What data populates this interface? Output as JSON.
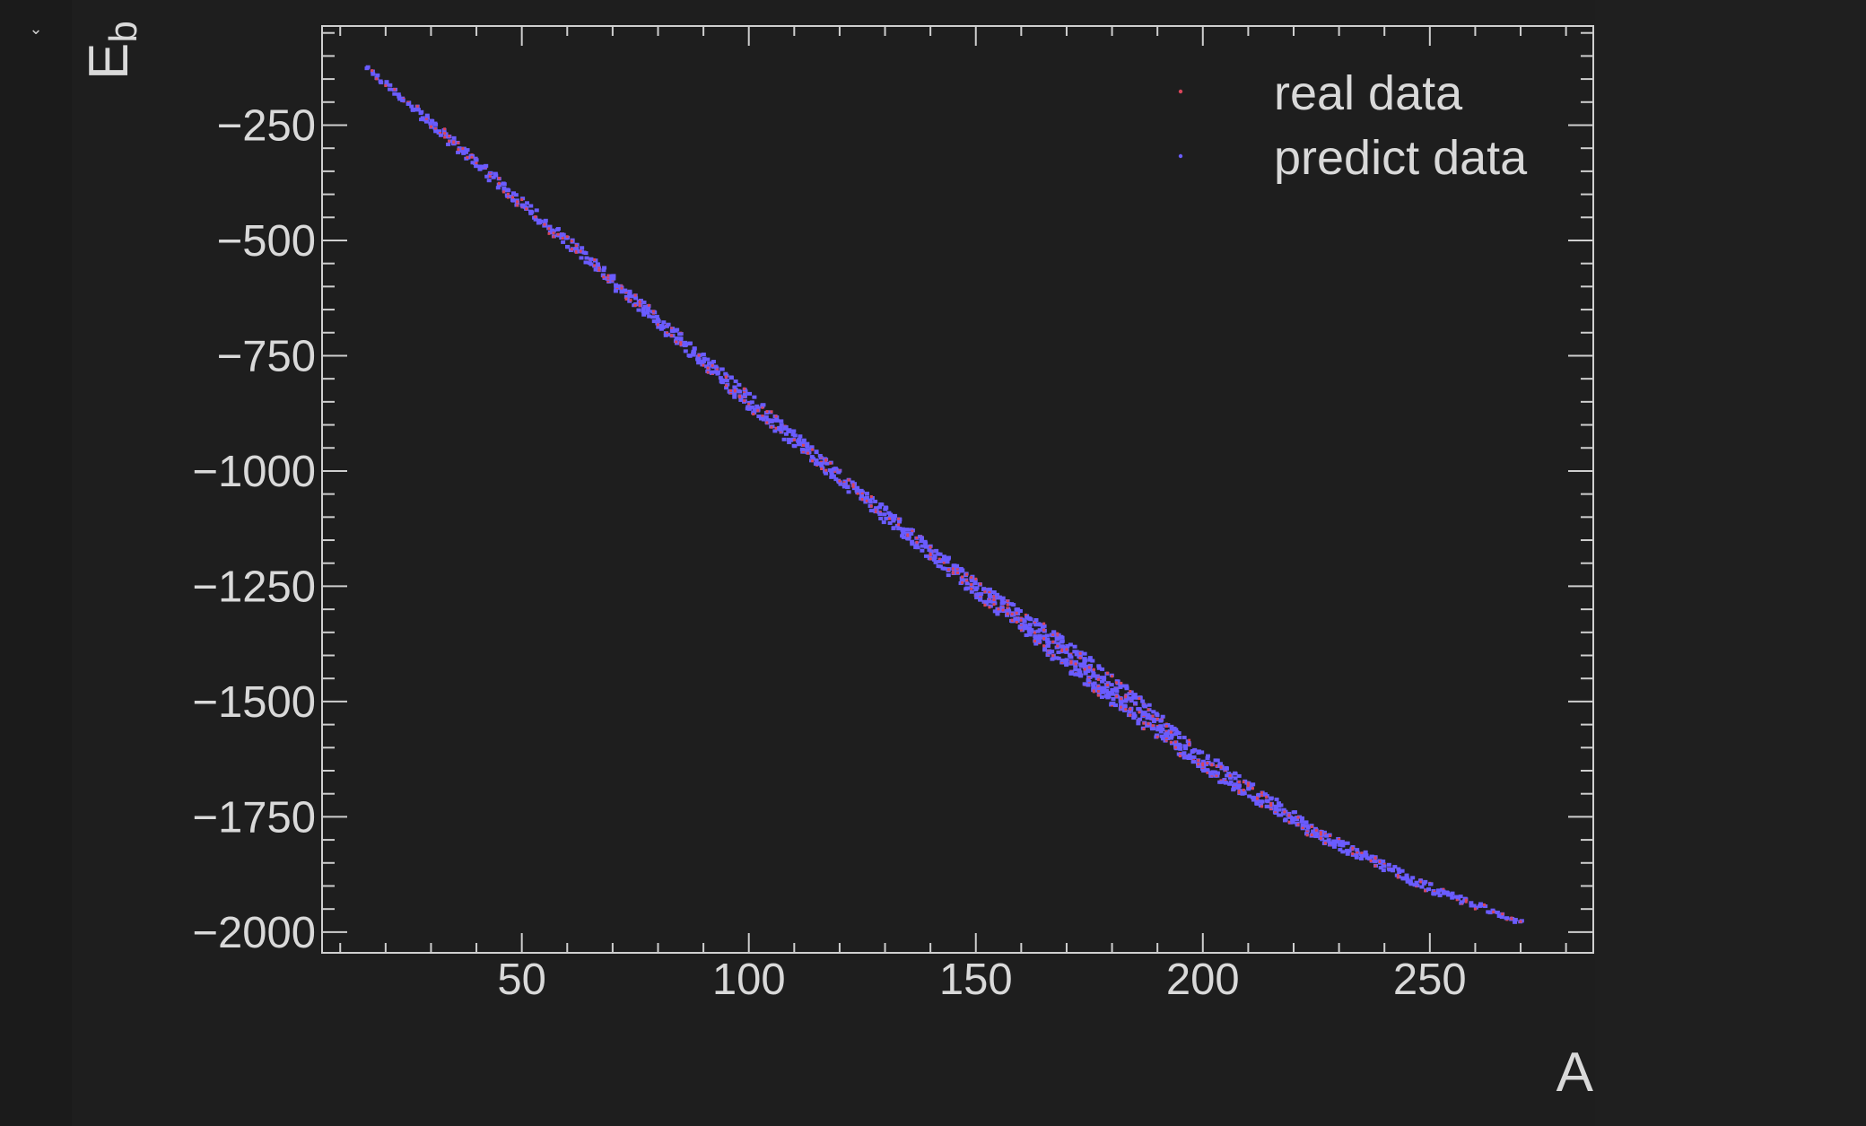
{
  "ui": {
    "collapse_icon": "chevron-down-icon",
    "colors": {
      "background": "#1e1e1e",
      "axis": "#cfcfcf",
      "text": "#d9d9d9",
      "real": "#d9455a",
      "predict": "#6a5cff"
    }
  },
  "chart_data": {
    "type": "scatter",
    "title": "",
    "xlabel": "A",
    "ylabel": "E",
    "ylabel_subscript": "b",
    "xlim": [
      6,
      286
    ],
    "ylim": [
      -2045,
      -35
    ],
    "xticks": [
      50,
      100,
      150,
      200,
      250
    ],
    "xtick_labels": [
      "50",
      "100",
      "150",
      "200",
      "250"
    ],
    "yticks": [
      -250,
      -500,
      -750,
      -1000,
      -1250,
      -1500,
      -1750,
      -2000
    ],
    "ytick_labels": [
      "−250",
      "−500",
      "−750",
      "−1000",
      "−1250",
      "−1500",
      "−1750",
      "−2000"
    ],
    "grid": false,
    "legend_position": "top-right",
    "series": [
      {
        "name": "real data",
        "color": "#d9455a",
        "marker": "dot"
      },
      {
        "name": "predict data",
        "color": "#6a5cff",
        "marker": "dot"
      }
    ],
    "trend": {
      "A": [
        16,
        30,
        50,
        75,
        100,
        125,
        150,
        175,
        200,
        225,
        250,
        270
      ],
      "E_center": [
        -128,
        -245,
        -420,
        -630,
        -848,
        -1055,
        -1255,
        -1435,
        -1630,
        -1785,
        -1905,
        -1978
      ],
      "band_width": [
        8,
        25,
        25,
        28,
        38,
        32,
        40,
        72,
        45,
        28,
        20,
        8
      ]
    }
  }
}
